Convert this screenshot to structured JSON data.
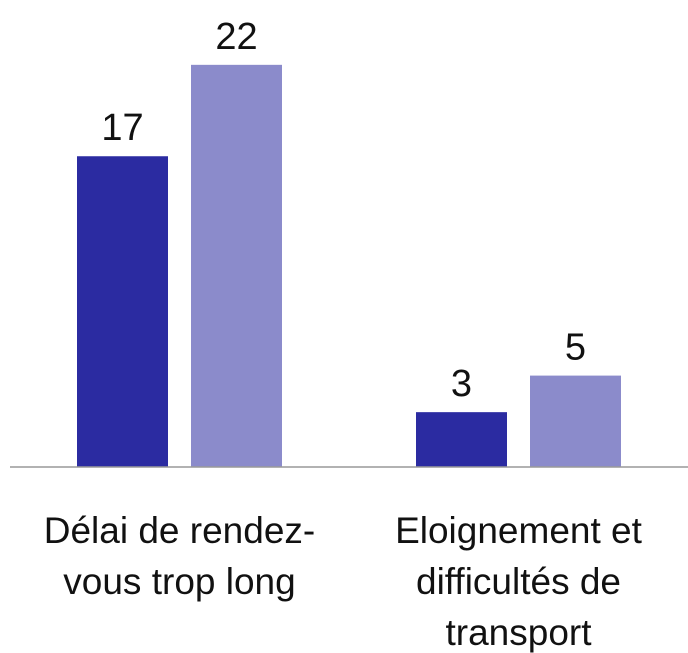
{
  "chart_data": {
    "type": "bar",
    "categories": [
      "Délai de rendez-vous trop long",
      "Eloignement et difficultés de transport"
    ],
    "series": [
      {
        "color": "#2b2ba1",
        "values": [
          17,
          3
        ]
      },
      {
        "color": "#8b8bcb",
        "values": [
          22,
          5
        ]
      }
    ],
    "ylim": [
      0,
      25
    ]
  }
}
